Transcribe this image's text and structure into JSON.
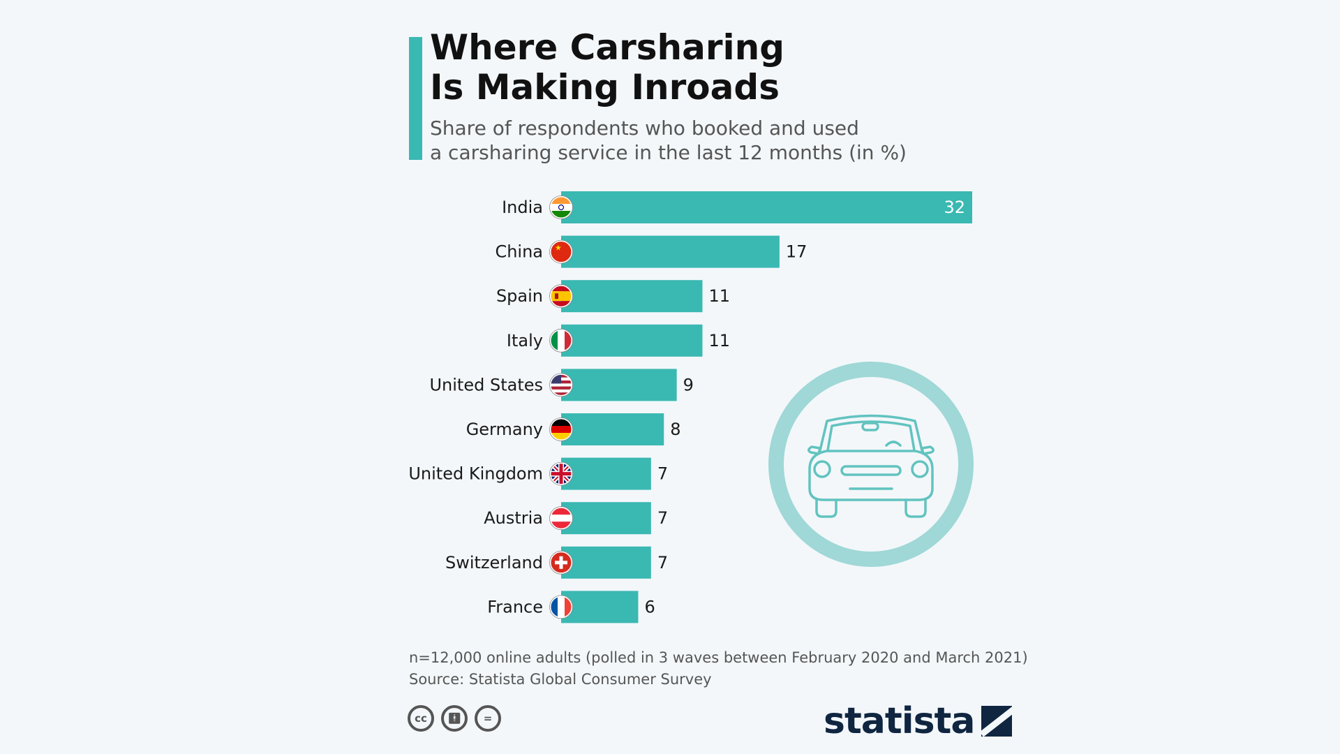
{
  "header": {
    "title": "Where Carsharing\nIs Making Inroads",
    "subtitle": "Share of respondents who booked and used\na carsharing service in the last 12 months (in %)"
  },
  "chart_data": {
    "type": "bar",
    "orientation": "horizontal",
    "categories": [
      "India",
      "China",
      "Spain",
      "Italy",
      "United States",
      "Germany",
      "United Kingdom",
      "Austria",
      "Switzerland",
      "France"
    ],
    "values": [
      32,
      17,
      11,
      11,
      9,
      8,
      7,
      7,
      7,
      6
    ],
    "title": "Where Carsharing Is Making Inroads",
    "subtitle": "Share of respondents who booked and used a carsharing service in the last 12 months (in %)",
    "xlim": [
      0,
      32
    ],
    "grid": false,
    "data_labels": true,
    "bar_color": "#3ab8b2"
  },
  "flags": [
    "flag-india-icon",
    "flag-china-icon",
    "flag-spain-icon",
    "flag-italy-icon",
    "flag-united-states-icon",
    "flag-germany-icon",
    "flag-united-kingdom-icon",
    "flag-austria-icon",
    "flag-switzerland-icon",
    "flag-france-icon"
  ],
  "illustration": {
    "icon": "car-icon",
    "color": "#9fd8d6",
    "stroke": "#62c3bf"
  },
  "footer": {
    "note": "n=12,000 online adults (polled in 3 waves between February 2020 and March 2021)",
    "source": "Source: Statista Global Consumer Survey",
    "license_icons": [
      "creative-commons-icon",
      "attribution-icon",
      "no-derivatives-icon"
    ],
    "brand": "statista"
  },
  "colors": {
    "accent": "#3ab8b2",
    "background": "#f3f7fa",
    "brand": "#0f2540"
  }
}
